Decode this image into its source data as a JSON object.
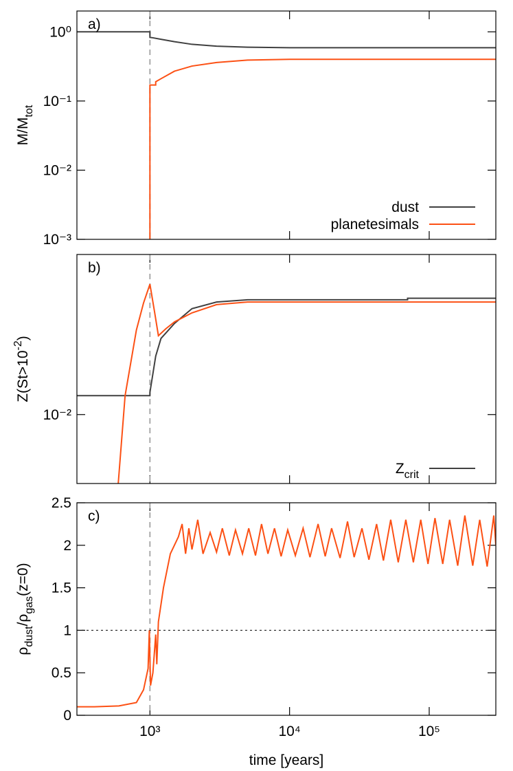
{
  "chart_data": [
    {
      "type": "line",
      "label": "a)",
      "ylabel": [
        {
          "text": "M/M"
        },
        {
          "text": "tot",
          "shift": "sub"
        }
      ],
      "xlog": true,
      "ylog": true,
      "xlim": [
        300,
        300000
      ],
      "ylim": [
        0.001,
        2
      ],
      "yticks": [
        {
          "value": 1,
          "label": "10⁰"
        },
        {
          "value": 0.1,
          "label": "10⁻¹"
        },
        {
          "value": 0.01,
          "label": "10⁻²"
        },
        {
          "value": 0.001,
          "label": "10⁻³"
        }
      ],
      "vline": 1000,
      "legend": "bottom-right",
      "series": [
        {
          "name": [
            {
              "text": "dust"
            }
          ],
          "color": "#404040",
          "x": [
            300,
            1000,
            1000,
            1050,
            1200,
            1500,
            2000,
            3000,
            5000,
            10000,
            300000
          ],
          "values": [
            1,
            1,
            0.83,
            0.82,
            0.78,
            0.72,
            0.66,
            0.62,
            0.6,
            0.59,
            0.59
          ]
        },
        {
          "name": [
            {
              "text": "planetesimals"
            }
          ],
          "color": "#fc5014",
          "x": [
            1000,
            1000,
            1100,
            1100,
            1200,
            1500,
            2000,
            3000,
            5000,
            10000,
            300000
          ],
          "values": [
            0.001,
            0.17,
            0.17,
            0.19,
            0.21,
            0.27,
            0.32,
            0.36,
            0.39,
            0.4,
            0.4
          ]
        }
      ]
    },
    {
      "type": "line",
      "label": "b)",
      "ylabel": [
        {
          "text": "Z(St>10"
        },
        {
          "text": "-2",
          "shift": "sup"
        },
        {
          "text": ")"
        }
      ],
      "xlog": true,
      "ylog": true,
      "xlim": [
        300,
        300000
      ],
      "ylim": [
        0.005,
        0.05
      ],
      "yticks": [
        {
          "value": 0.01,
          "label": "10⁻²"
        }
      ],
      "vline": 1000,
      "legend": "bottom-right",
      "series": [
        {
          "name": [
            {
              "text": "Z"
            },
            {
              "text": "crit",
              "shift": "sub"
            }
          ],
          "color": "#404040",
          "x": [
            300,
            1000,
            1000,
            1100,
            1200,
            1500,
            2000,
            3000,
            5000,
            70000,
            70000,
            300000
          ],
          "values": [
            0.0121,
            0.0121,
            0.0125,
            0.018,
            0.0215,
            0.025,
            0.029,
            0.031,
            0.0317,
            0.0317,
            0.0322,
            0.0322
          ]
        },
        {
          "color": "#fc5014",
          "x": [
            593,
            664,
            800,
            900,
            1000,
            1080,
            1150,
            1300,
            1500,
            2000,
            3000,
            5000,
            10000,
            300000
          ],
          "values": [
            0.005,
            0.0121,
            0.0234,
            0.0307,
            0.0371,
            0.028,
            0.0221,
            0.0237,
            0.0254,
            0.0278,
            0.0302,
            0.031,
            0.031,
            0.031
          ]
        }
      ]
    },
    {
      "type": "line",
      "label": "c)",
      "ylabel": [
        {
          "text": "ρ"
        },
        {
          "text": "dust",
          "shift": "sub"
        },
        {
          "text": "/ρ"
        },
        {
          "text": "gas",
          "shift": "sub"
        },
        {
          "text": "(z=0)"
        }
      ],
      "xlabel": [
        {
          "text": "time [years]"
        }
      ],
      "xlog": true,
      "ylog": false,
      "xlim": [
        300,
        300000
      ],
      "ylim": [
        0,
        2.5
      ],
      "xticks": [
        {
          "value": 1000,
          "label": "10³"
        },
        {
          "value": 10000,
          "label": "10⁴"
        },
        {
          "value": 100000,
          "label": "10⁵"
        }
      ],
      "yticks": [
        0,
        0.5,
        1,
        1.5,
        2,
        2.5
      ],
      "vline": 1000,
      "hline": 1,
      "series": [
        {
          "color": "#fc5014",
          "x": [
            300,
            400,
            600,
            800,
            900,
            970,
            990,
            1010,
            1050,
            1100,
            1120,
            1150,
            1250,
            1400,
            1600,
            1700,
            1800,
            1900,
            2000,
            2200,
            2400,
            2700,
            3000,
            3300,
            3700,
            4100,
            4600,
            5100,
            5700,
            6300,
            7000,
            7800,
            8700,
            9700,
            11000,
            12500,
            14000,
            16000,
            18000,
            20000,
            23000,
            26000,
            29000,
            33000,
            37000,
            42000,
            47000,
            53000,
            60000,
            68000,
            77000,
            87000,
            98000,
            110000,
            125000,
            140000,
            160000,
            180000,
            205000,
            230000,
            260000,
            290000,
            300000
          ],
          "values": [
            0.1,
            0.1,
            0.11,
            0.15,
            0.3,
            0.55,
            1.0,
            0.35,
            0.5,
            0.95,
            0.6,
            1.1,
            1.5,
            1.9,
            2.1,
            2.25,
            1.9,
            2.2,
            1.95,
            2.3,
            1.9,
            2.15,
            1.92,
            2.2,
            1.88,
            2.18,
            1.9,
            2.2,
            1.88,
            2.25,
            1.9,
            2.2,
            1.87,
            2.18,
            1.88,
            2.2,
            1.86,
            2.25,
            1.87,
            2.2,
            1.85,
            2.28,
            1.86,
            2.2,
            1.83,
            2.25,
            1.82,
            2.3,
            1.8,
            2.3,
            1.8,
            2.3,
            1.78,
            2.32,
            1.78,
            2.3,
            1.76,
            2.35,
            1.76,
            2.3,
            1.75,
            2.35,
            2.0
          ]
        }
      ]
    }
  ]
}
